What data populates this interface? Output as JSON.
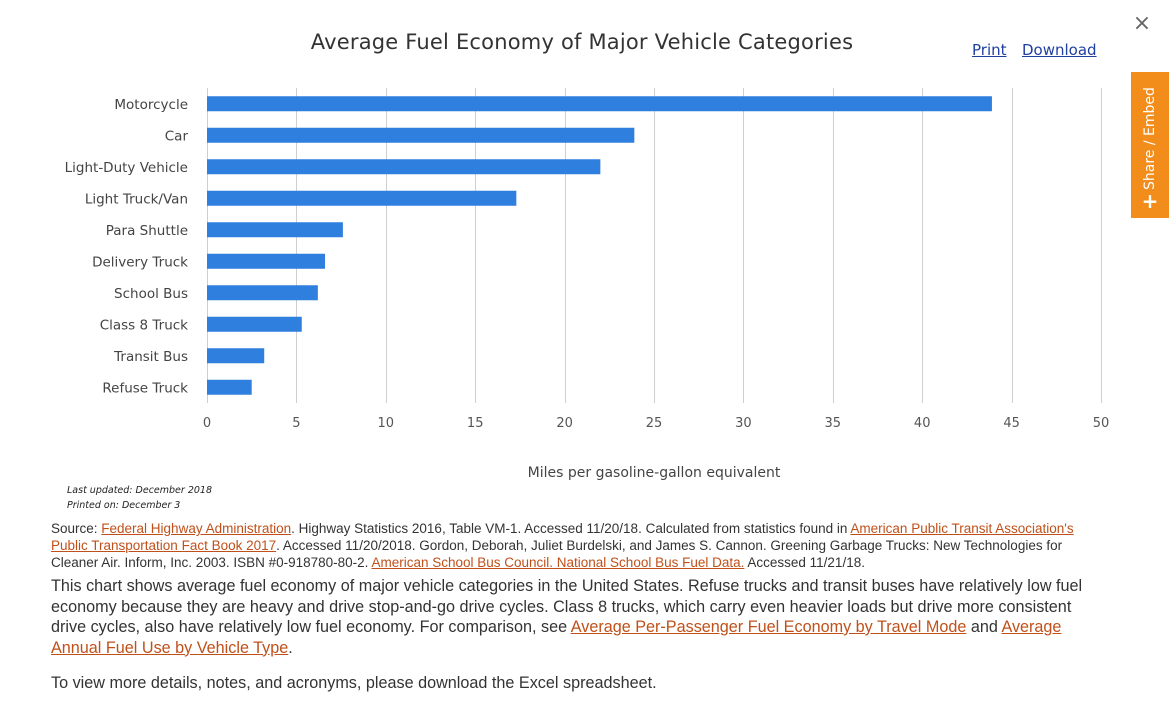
{
  "header": {
    "close_label": "×",
    "print_label": "Print",
    "download_label": "Download"
  },
  "share": {
    "label": "Share / Embed",
    "plus": "+"
  },
  "chart_data": {
    "type": "bar",
    "orientation": "horizontal",
    "title": "Average Fuel Economy of Major Vehicle Categories",
    "xlabel": "Miles per gasoline-gallon equivalent",
    "ylabel": "",
    "xlim": [
      0,
      50
    ],
    "xticks": [
      0,
      5,
      10,
      15,
      20,
      25,
      30,
      35,
      40,
      45,
      50
    ],
    "grid": true,
    "legend": "none",
    "bar_color": "#2e7fde",
    "categories": [
      "Motorcycle",
      "Car",
      "Light-Duty Vehicle",
      "Light Truck/Van",
      "Para Shuttle",
      "Delivery Truck",
      "School Bus",
      "Class 8 Truck",
      "Transit Bus",
      "Refuse Truck"
    ],
    "values": [
      43.9,
      23.9,
      22.0,
      17.3,
      7.6,
      6.6,
      6.2,
      5.3,
      3.2,
      2.5
    ]
  },
  "meta": {
    "last_updated": "Last updated: December 2018",
    "printed_on": "Printed on: December 3"
  },
  "source": {
    "prefix": "Source: ",
    "link1": "Federal Highway Administration",
    "text1": ". Highway Statistics 2016, Table VM-1. Accessed 11/20/18. Calculated from statistics found in ",
    "link2": "American Public Transit Association's Public Transportation Fact Book 2017",
    "text2": ". Accessed 11/20/2018. Gordon, Deborah, Juliet Burdelski, and James S. Cannon. Greening Garbage Trucks: New Technologies for Cleaner Air. Inform, Inc. 2003. ISBN #0-918780-80-2. ",
    "link3": "American School Bus Council. National School Bus Fuel Data.",
    "text3": " Accessed 11/21/18."
  },
  "description": {
    "text1": "This chart shows average fuel economy of major vehicle categories in the United States. Refuse trucks and transit buses have relatively low fuel economy because they are heavy and drive stop-and-go drive cycles. Class 8 trucks, which carry even heavier loads but drive more consistent drive cycles, also have relatively low fuel economy. For comparison, see ",
    "link1": "Average Per-Passenger Fuel Economy by Travel Mode",
    "text2": " and ",
    "link2": "Average Annual Fuel Use by Vehicle Type",
    "text3": "."
  },
  "note": {
    "text": "To view more details, notes, and acronyms, please download the Excel spreadsheet."
  }
}
